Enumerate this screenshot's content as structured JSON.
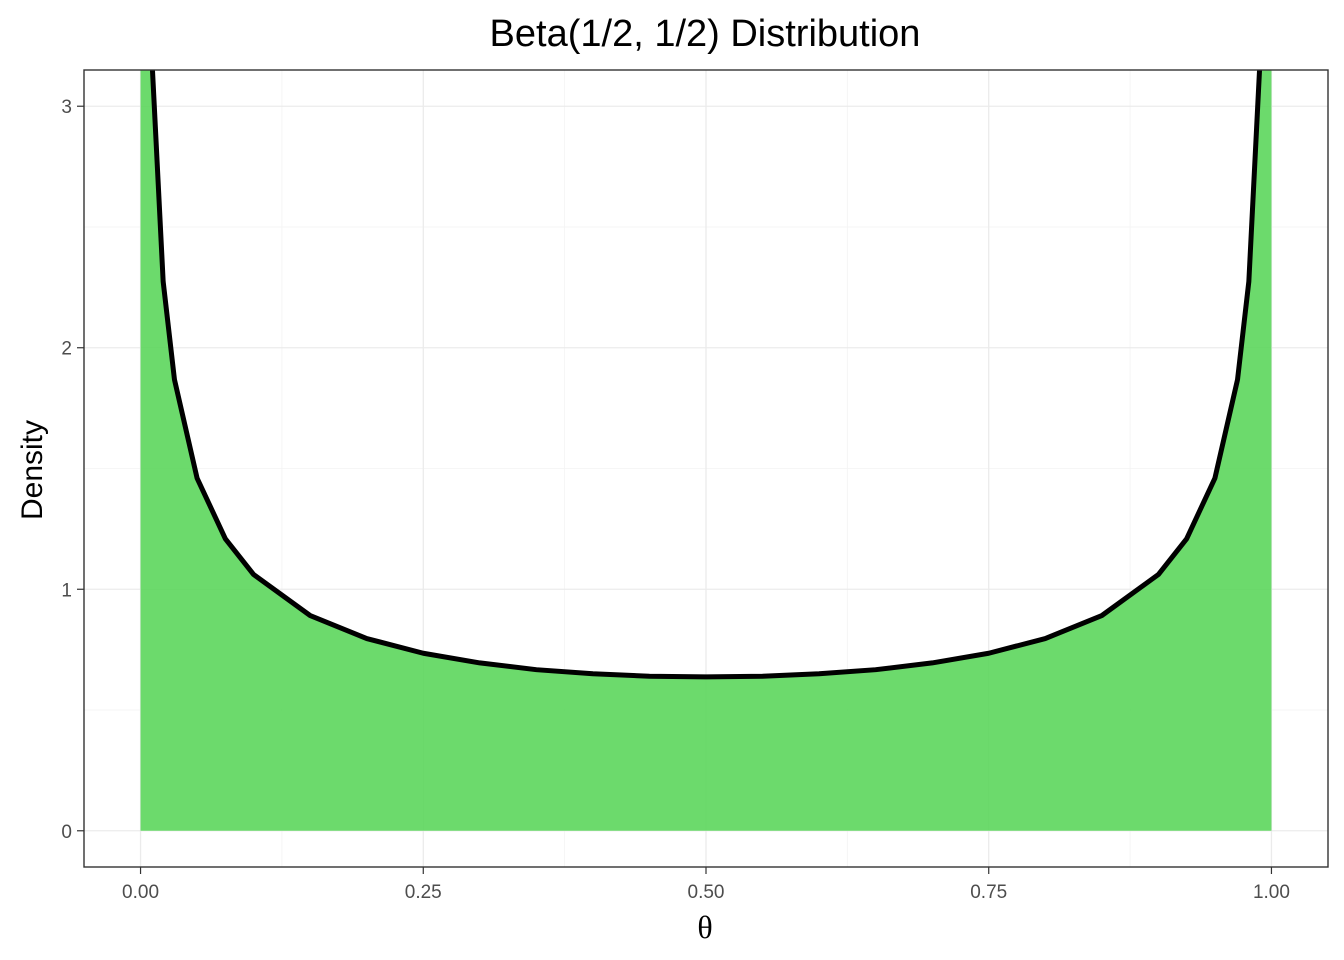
{
  "chart_data": {
    "type": "area",
    "title": "Beta(1/2, 1/2) Distribution",
    "xlabel": "θ",
    "ylabel": "Density",
    "distribution": "Beta",
    "parameters": {
      "alpha": 0.5,
      "beta": 0.5
    },
    "xlim": [
      -0.05,
      1.05
    ],
    "ylim": [
      -0.15,
      3.15
    ],
    "x_ticks": [
      0.0,
      0.25,
      0.5,
      0.75,
      1.0
    ],
    "x_tick_labels": [
      "0.00",
      "0.25",
      "0.50",
      "0.75",
      "1.00"
    ],
    "y_ticks": [
      0,
      1,
      2,
      3
    ],
    "y_tick_labels": [
      "0",
      "1",
      "2",
      "3"
    ],
    "grid": true,
    "legend": "none",
    "series": [
      {
        "kind": "area",
        "color": "#5cd65c",
        "x": [
          0.0,
          0.01,
          0.02,
          0.03,
          0.05,
          0.075,
          0.1,
          0.15,
          0.2,
          0.25,
          0.3,
          0.35,
          0.4,
          0.45,
          0.5,
          0.55,
          0.6,
          0.65,
          0.7,
          0.75,
          0.8,
          0.85,
          0.9,
          0.925,
          0.95,
          0.97,
          0.98,
          0.99,
          1.0
        ],
        "y": [
          3.15,
          3.2,
          2.274,
          1.868,
          1.46,
          1.209,
          1.061,
          0.891,
          0.796,
          0.735,
          0.695,
          0.667,
          0.65,
          0.64,
          0.637,
          0.64,
          0.65,
          0.667,
          0.695,
          0.735,
          0.796,
          0.891,
          1.061,
          1.209,
          1.46,
          1.868,
          2.274,
          3.2,
          3.15
        ]
      },
      {
        "kind": "line",
        "color": "#000000",
        "x": [
          0.0103,
          0.01,
          0.02,
          0.03,
          0.05,
          0.075,
          0.1,
          0.15,
          0.2,
          0.25,
          0.3,
          0.35,
          0.4,
          0.45,
          0.5,
          0.55,
          0.6,
          0.65,
          0.7,
          0.75,
          0.8,
          0.85,
          0.9,
          0.925,
          0.95,
          0.97,
          0.98,
          0.99,
          0.9897
        ],
        "y": [
          3.15,
          3.2,
          2.274,
          1.868,
          1.46,
          1.209,
          1.061,
          0.891,
          0.796,
          0.735,
          0.695,
          0.667,
          0.65,
          0.64,
          0.637,
          0.64,
          0.65,
          0.667,
          0.695,
          0.735,
          0.796,
          0.891,
          1.061,
          1.209,
          1.46,
          1.868,
          2.274,
          3.2,
          3.15
        ]
      }
    ]
  }
}
